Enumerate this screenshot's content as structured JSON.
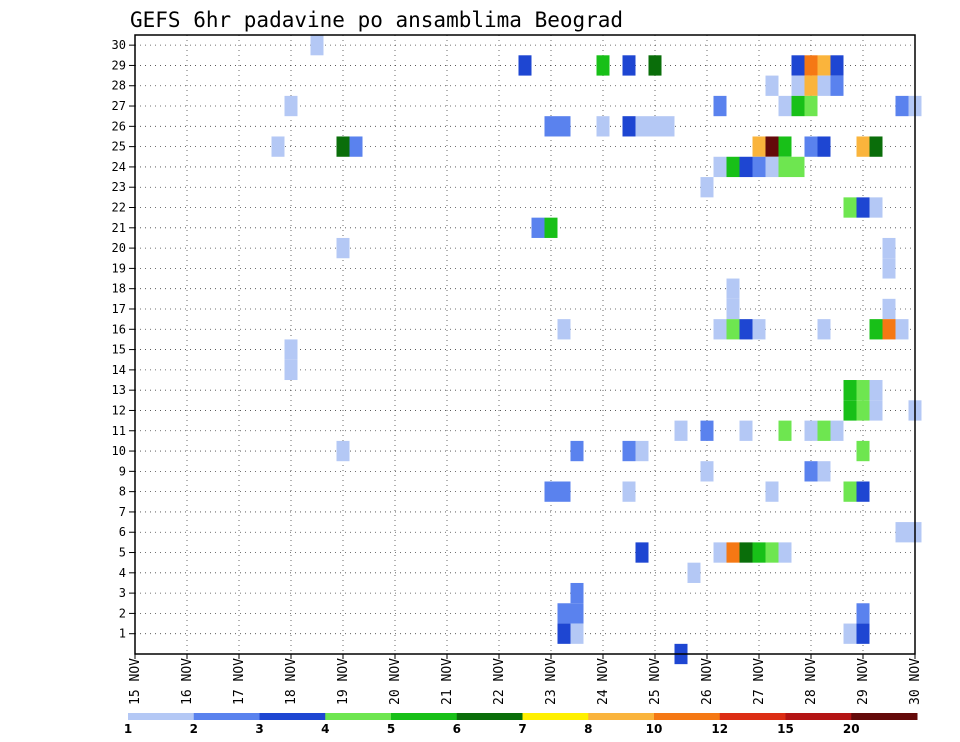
{
  "chart_data": {
    "type": "heatmap",
    "title": "GEFS 6hr padavine po ansamblima Beograd",
    "xlabel": "",
    "ylabel": "",
    "y_ticks": [
      "1",
      "2",
      "3",
      "4",
      "5",
      "6",
      "7",
      "8",
      "9",
      "10",
      "11",
      "12",
      "13",
      "14",
      "15",
      "16",
      "17",
      "18",
      "19",
      "20",
      "21",
      "22",
      "23",
      "24",
      "25",
      "26",
      "27",
      "28",
      "29",
      "30"
    ],
    "x_ticks": [
      "15 NOV",
      "16 NOV",
      "17 NOV",
      "18 NOV",
      "19 NOV",
      "20 NOV",
      "21 NOV",
      "22 NOV",
      "23 NOV",
      "24 NOV",
      "25 NOV",
      "26 NOV",
      "27 NOV",
      "28 NOV",
      "29 NOV",
      "30 NOV"
    ],
    "x_unit": "6-hourly steps from 15 NOV 00z (4 steps per day)",
    "grid": true,
    "legend": {
      "placement": "bottom",
      "labels": [
        "1",
        "2",
        "3",
        "4",
        "5",
        "6",
        "7",
        "8",
        "10",
        "12",
        "15",
        "20"
      ],
      "colors": [
        "#b4c8f5",
        "#5a82ee",
        "#1e46d2",
        "#6ee650",
        "#18c018",
        "#0a6e0a",
        "#fff000",
        "#fab43c",
        "#f57814",
        "#dc2d14",
        "#b41414",
        "#640a0a"
      ]
    },
    "cells": [
      [
        30,
        18.5,
        1
      ],
      [
        29,
        22.5,
        3
      ],
      [
        29,
        24,
        5
      ],
      [
        29,
        24.5,
        3
      ],
      [
        29,
        25,
        6
      ],
      [
        29,
        27.75,
        3
      ],
      [
        29,
        28,
        10
      ],
      [
        29,
        28.25,
        8
      ],
      [
        29,
        28.5,
        3
      ],
      [
        28,
        27.25,
        1
      ],
      [
        28,
        27.75,
        1
      ],
      [
        28,
        28,
        8
      ],
      [
        28,
        28.25,
        1
      ],
      [
        28,
        28.5,
        2
      ],
      [
        27,
        18,
        1
      ],
      [
        27,
        26.25,
        2
      ],
      [
        27,
        27.5,
        1
      ],
      [
        27,
        27.75,
        5
      ],
      [
        27,
        28,
        4
      ],
      [
        27,
        29.75,
        2
      ],
      [
        27,
        30,
        1
      ],
      [
        26,
        23,
        2
      ],
      [
        26,
        23.25,
        2
      ],
      [
        26,
        24,
        1
      ],
      [
        26,
        24.5,
        3
      ],
      [
        26,
        24.75,
        1
      ],
      [
        26,
        25,
        1
      ],
      [
        26,
        25.25,
        1
      ],
      [
        25,
        17.75,
        1
      ],
      [
        25,
        19,
        6
      ],
      [
        25,
        19.25,
        2
      ],
      [
        25,
        27,
        8
      ],
      [
        25,
        27.25,
        20
      ],
      [
        25,
        27.5,
        5
      ],
      [
        25,
        28,
        2
      ],
      [
        25,
        28.25,
        3
      ],
      [
        25,
        29,
        8
      ],
      [
        25,
        29.25,
        6
      ],
      [
        24,
        26.25,
        1
      ],
      [
        24,
        26.5,
        5
      ],
      [
        24,
        26.75,
        3
      ],
      [
        24,
        27,
        2
      ],
      [
        24,
        27.25,
        1
      ],
      [
        24,
        27.5,
        4
      ],
      [
        24,
        27.75,
        4
      ],
      [
        23,
        26,
        1
      ],
      [
        22,
        28.75,
        4
      ],
      [
        22,
        29,
        3
      ],
      [
        22,
        29.25,
        1
      ],
      [
        21,
        22.75,
        2
      ],
      [
        21,
        23,
        5
      ],
      [
        20,
        19,
        1
      ],
      [
        20,
        29.5,
        1
      ],
      [
        19,
        29.5,
        1
      ],
      [
        18,
        26.5,
        1
      ],
      [
        17,
        26.5,
        1
      ],
      [
        17,
        29.5,
        1
      ],
      [
        16,
        23.25,
        1
      ],
      [
        16,
        26.25,
        1
      ],
      [
        16,
        26.5,
        4
      ],
      [
        16,
        26.75,
        3
      ],
      [
        16,
        27,
        1
      ],
      [
        16,
        28.25,
        1
      ],
      [
        16,
        29.25,
        5
      ],
      [
        16,
        29.5,
        10
      ],
      [
        16,
        29.75,
        1
      ],
      [
        15,
        18,
        1
      ],
      [
        14,
        18,
        1
      ],
      [
        13,
        28.75,
        5
      ],
      [
        13,
        29,
        4
      ],
      [
        13,
        29.25,
        1
      ],
      [
        12,
        28.75,
        5
      ],
      [
        12,
        29,
        4
      ],
      [
        12,
        29.25,
        1
      ],
      [
        12,
        30,
        1
      ],
      [
        11,
        25.5,
        1
      ],
      [
        11,
        26,
        2
      ],
      [
        11,
        26.75,
        1
      ],
      [
        11,
        27.5,
        4
      ],
      [
        11,
        28,
        1
      ],
      [
        11,
        28.25,
        4
      ],
      [
        11,
        28.5,
        1
      ],
      [
        10,
        19,
        1
      ],
      [
        10,
        23.5,
        2
      ],
      [
        10,
        24.5,
        2
      ],
      [
        10,
        24.75,
        1
      ],
      [
        10,
        29,
        4
      ],
      [
        9,
        26,
        1
      ],
      [
        9,
        28,
        2
      ],
      [
        9,
        28.25,
        1
      ],
      [
        8,
        23,
        2
      ],
      [
        8,
        23.25,
        2
      ],
      [
        8,
        24.5,
        1
      ],
      [
        8,
        27.25,
        1
      ],
      [
        8,
        28.75,
        4
      ],
      [
        8,
        29,
        3
      ],
      [
        6,
        29.75,
        1
      ],
      [
        6,
        30,
        1
      ],
      [
        5,
        24.75,
        3
      ],
      [
        5,
        26.25,
        1
      ],
      [
        5,
        26.5,
        10
      ],
      [
        5,
        26.75,
        6
      ],
      [
        5,
        27,
        5
      ],
      [
        5,
        27.25,
        4
      ],
      [
        5,
        27.5,
        1
      ],
      [
        4,
        25.75,
        1
      ],
      [
        3,
        23.5,
        2
      ],
      [
        2,
        23.25,
        2
      ],
      [
        2,
        23.5,
        2
      ],
      [
        2,
        29,
        2
      ],
      [
        1,
        23.25,
        3
      ],
      [
        1,
        23.5,
        1
      ],
      [
        1,
        28.75,
        1
      ],
      [
        1,
        29,
        3
      ],
      [
        0,
        25.5,
        3
      ]
    ]
  }
}
